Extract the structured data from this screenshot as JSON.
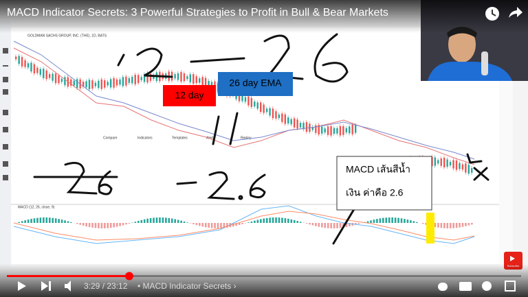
{
  "video": {
    "title": "MACD Indicator Secrets: 3 Powerful Strategies to Profit in Bull & Bear Markets",
    "time": "3:29 / 23:12",
    "chapter": "• MACD Indicator Secrets ›",
    "subscribe": "Subscribe"
  },
  "chart": {
    "symbol": "GOLDMAN SACHS GROUP, INC. (THE), 1D, BATS",
    "toolbar": [
      "Compare",
      "Indicators",
      "Templates",
      "Alert",
      "Replay"
    ],
    "indicator": "MACD (12, 26, close, 9)"
  },
  "annotations": {
    "red_box": "12 day",
    "blue_box": "26 day EMA",
    "note_line1": "MACD เส้นสีน้ำ",
    "note_line2": "เงิน ค่าคือ 2.6"
  }
}
